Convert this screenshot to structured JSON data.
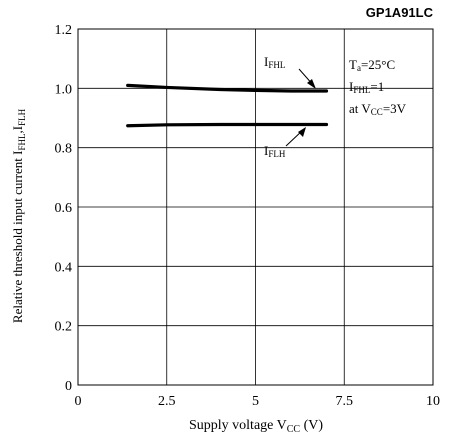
{
  "header": {
    "part_number": "GP1A91LC"
  },
  "chart_data": {
    "type": "line",
    "xlabel": {
      "main": "Supply voltage V",
      "sub": "CC",
      "unit": " (V)"
    },
    "ylabel": {
      "main": "Relative threshold input current I",
      "sub1": "FHL",
      "sep": ",I",
      "sub2": "FLH"
    },
    "xlim": [
      0,
      10
    ],
    "ylim": [
      0,
      1.2
    ],
    "x_ticks": [
      "0",
      "2.5",
      "5",
      "7.5",
      "10"
    ],
    "y_ticks": [
      "0",
      "0.2",
      "0.4",
      "0.6",
      "0.8",
      "1.0",
      "1.2"
    ],
    "grid": true,
    "series": [
      {
        "name": {
          "main": "I",
          "sub": "FHL"
        },
        "x": [
          1.4,
          2.5,
          4.0,
          5.0,
          6.0,
          7.0
        ],
        "y": [
          1.01,
          1.003,
          0.996,
          0.993,
          0.991,
          0.991
        ]
      },
      {
        "name": {
          "main": "I",
          "sub": "FLH"
        },
        "x": [
          1.4,
          2.5,
          4.0,
          5.0,
          6.0,
          7.0
        ],
        "y": [
          0.874,
          0.877,
          0.878,
          0.878,
          0.878,
          0.878
        ]
      }
    ],
    "annotations": {
      "line1": {
        "main": "T",
        "sub": "a",
        "rest": "=25°C"
      },
      "line2": {
        "main": "I",
        "sub": "FHL",
        "rest": "=1"
      },
      "line3": {
        "main": "at V",
        "sub": "CC",
        "rest": "=3V"
      }
    }
  }
}
